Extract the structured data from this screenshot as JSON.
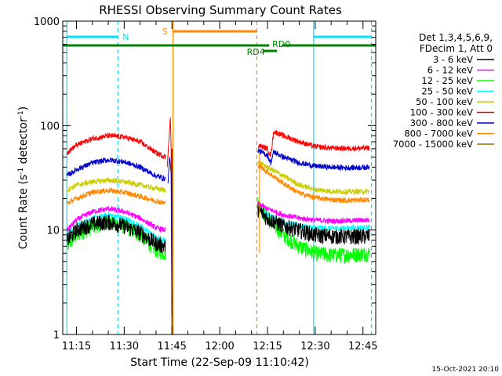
{
  "chart_data": {
    "type": "line",
    "title": "RHESSI Observing Summary Count Rates",
    "xlabel": "Start Time (22-Sep-09 11:10:42)",
    "ylabel_main": "Count Rate (s",
    "ylabel_sup1": "-1",
    "ylabel_mid": " detector",
    "ylabel_sup2": "-1",
    "ylabel_end": ")",
    "y_scale": "log",
    "ylim": [
      1,
      1000
    ],
    "xlim": [
      "11:10:42",
      "12:49:00"
    ],
    "x_ticks": [
      "11:15",
      "11:30",
      "11:45",
      "12:00",
      "12:15",
      "12:30",
      "12:45"
    ],
    "y_ticks": [
      "1",
      "10",
      "100",
      "1000"
    ],
    "grid": false,
    "legend_position": "right",
    "legend_header": [
      "Det 1,3,4,5,6,9,",
      "FDecim 1, Att 0"
    ],
    "timestamp": "15-Oct-2021 20:10",
    "series": [
      {
        "name": "3 - 6 keV",
        "color": "#000000",
        "seg1": [
          [
            "11:12",
            8
          ],
          [
            "11:15",
            10
          ],
          [
            "11:20",
            11.5
          ],
          [
            "11:25",
            12
          ],
          [
            "11:30",
            11
          ],
          [
            "11:35",
            9.5
          ],
          [
            "11:40",
            7.5
          ],
          [
            "11:43",
            7
          ]
        ],
        "seg2": [
          [
            "12:12",
            16
          ],
          [
            "12:15",
            13
          ],
          [
            "12:20",
            11
          ],
          [
            "12:25",
            10
          ],
          [
            "12:30",
            9
          ],
          [
            "12:35",
            8.8
          ],
          [
            "12:40",
            8.7
          ],
          [
            "12:47",
            8.8
          ]
        ]
      },
      {
        "name": "6 - 12 keV",
        "color": "#ff00ff",
        "seg1": [
          [
            "11:12",
            10
          ],
          [
            "11:15",
            12.5
          ],
          [
            "11:20",
            15
          ],
          [
            "11:25",
            16
          ],
          [
            "11:30",
            15
          ],
          [
            "11:35",
            13
          ],
          [
            "11:40",
            10.5
          ],
          [
            "11:43",
            10
          ]
        ],
        "seg2": [
          [
            "12:12",
            18
          ],
          [
            "12:15",
            16
          ],
          [
            "12:20",
            14
          ],
          [
            "12:25",
            13
          ],
          [
            "12:30",
            12.5
          ],
          [
            "12:35",
            12.2
          ],
          [
            "12:40",
            12.3
          ],
          [
            "12:47",
            12.5
          ]
        ]
      },
      {
        "name": "12 - 25 keV",
        "color": "#00ff00",
        "seg1": [
          [
            "11:12",
            7
          ],
          [
            "11:15",
            9
          ],
          [
            "11:20",
            11
          ],
          [
            "11:25",
            12
          ],
          [
            "11:30",
            11
          ],
          [
            "11:35",
            9
          ],
          [
            "11:40",
            6.5
          ],
          [
            "11:43",
            6
          ]
        ],
        "seg2": [
          [
            "12:12",
            18
          ],
          [
            "12:15",
            13
          ],
          [
            "12:20",
            9
          ],
          [
            "12:25",
            7
          ],
          [
            "12:30",
            6
          ],
          [
            "12:35",
            5.8
          ],
          [
            "12:40",
            5.8
          ],
          [
            "12:47",
            6
          ]
        ]
      },
      {
        "name": "25 - 50 keV",
        "color": "#00ffff",
        "seg1": [
          [
            "11:12",
            9
          ],
          [
            "11:15",
            11
          ],
          [
            "11:20",
            13
          ],
          [
            "11:25",
            14
          ],
          [
            "11:30",
            13
          ],
          [
            "11:35",
            11
          ],
          [
            "11:40",
            8.5
          ],
          [
            "11:43",
            8
          ]
        ],
        "seg2": [
          [
            "12:12",
            16
          ],
          [
            "12:15",
            14
          ],
          [
            "12:20",
            12
          ],
          [
            "12:25",
            11
          ],
          [
            "12:30",
            10.5
          ],
          [
            "12:35",
            10.4
          ],
          [
            "12:40",
            10.5
          ],
          [
            "12:47",
            10.6
          ]
        ]
      },
      {
        "name": "50 - 100 keV",
        "color": "#cccc00",
        "seg1": [
          [
            "11:12",
            24
          ],
          [
            "11:15",
            27
          ],
          [
            "11:20",
            29
          ],
          [
            "11:25",
            30
          ],
          [
            "11:30",
            29
          ],
          [
            "11:35",
            27
          ],
          [
            "11:40",
            25
          ],
          [
            "11:43",
            24
          ]
        ],
        "seg2": [
          [
            "12:12",
            45
          ],
          [
            "12:15",
            40
          ],
          [
            "12:20",
            33
          ],
          [
            "12:25",
            27
          ],
          [
            "12:30",
            24.5
          ],
          [
            "12:35",
            23.5
          ],
          [
            "12:40",
            23.3
          ],
          [
            "12:47",
            23.5
          ]
        ]
      },
      {
        "name": "100 - 300 keV",
        "color": "#ff0000",
        "seg1": [
          [
            "11:12",
            55
          ],
          [
            "11:15",
            65
          ],
          [
            "11:20",
            75
          ],
          [
            "11:25",
            80
          ],
          [
            "11:30",
            78
          ],
          [
            "11:35",
            70
          ],
          [
            "11:40",
            55
          ],
          [
            "11:43",
            50
          ]
        ],
        "seg2": [
          [
            "12:12",
            65
          ],
          [
            "12:15",
            60
          ],
          [
            "12:16",
            52
          ],
          [
            "12:17",
            88
          ],
          [
            "12:20",
            80
          ],
          [
            "12:25",
            70
          ],
          [
            "12:30",
            63
          ],
          [
            "12:35",
            61
          ],
          [
            "12:40",
            60.5
          ],
          [
            "12:47",
            61
          ]
        ]
      },
      {
        "name": "300 - 800 keV",
        "color": "#0000cc",
        "seg1": [
          [
            "11:12",
            33
          ],
          [
            "11:15",
            38
          ],
          [
            "11:20",
            44
          ],
          [
            "11:25",
            47
          ],
          [
            "11:30",
            45
          ],
          [
            "11:35",
            40
          ],
          [
            "11:40",
            33
          ],
          [
            "11:43",
            31
          ]
        ],
        "seg2": [
          [
            "12:12",
            58
          ],
          [
            "12:15",
            52
          ],
          [
            "12:16",
            44
          ],
          [
            "12:17",
            56
          ],
          [
            "12:20",
            50
          ],
          [
            "12:25",
            44
          ],
          [
            "12:30",
            41
          ],
          [
            "12:35",
            40
          ],
          [
            "12:40",
            39.5
          ],
          [
            "12:47",
            40
          ]
        ]
      },
      {
        "name": "800 - 7000 keV",
        "color": "#ff8800",
        "seg1": [
          [
            "11:12",
            18
          ],
          [
            "11:15",
            20
          ],
          [
            "11:20",
            23
          ],
          [
            "11:25",
            24
          ],
          [
            "11:30",
            23
          ],
          [
            "11:35",
            21
          ],
          [
            "11:40",
            19
          ],
          [
            "11:43",
            18
          ]
        ],
        "seg2": [
          [
            "12:12",
            42
          ],
          [
            "12:15",
            36
          ],
          [
            "12:20",
            28
          ],
          [
            "12:25",
            22.5
          ],
          [
            "12:30",
            20.5
          ],
          [
            "12:35",
            19.5
          ],
          [
            "12:40",
            19.2
          ],
          [
            "12:47",
            19.5
          ]
        ]
      },
      {
        "name": "7000 - 15000 keV",
        "color": "#a07000",
        "seg1": [],
        "seg2": []
      }
    ],
    "flags": [
      {
        "label": "N",
        "color": "#00e0ff"
      },
      {
        "label": "S",
        "color": "#ff8800"
      },
      {
        "label": "RD4",
        "color": "#008000"
      },
      {
        "label": "RD0",
        "color": "#008000"
      }
    ]
  }
}
